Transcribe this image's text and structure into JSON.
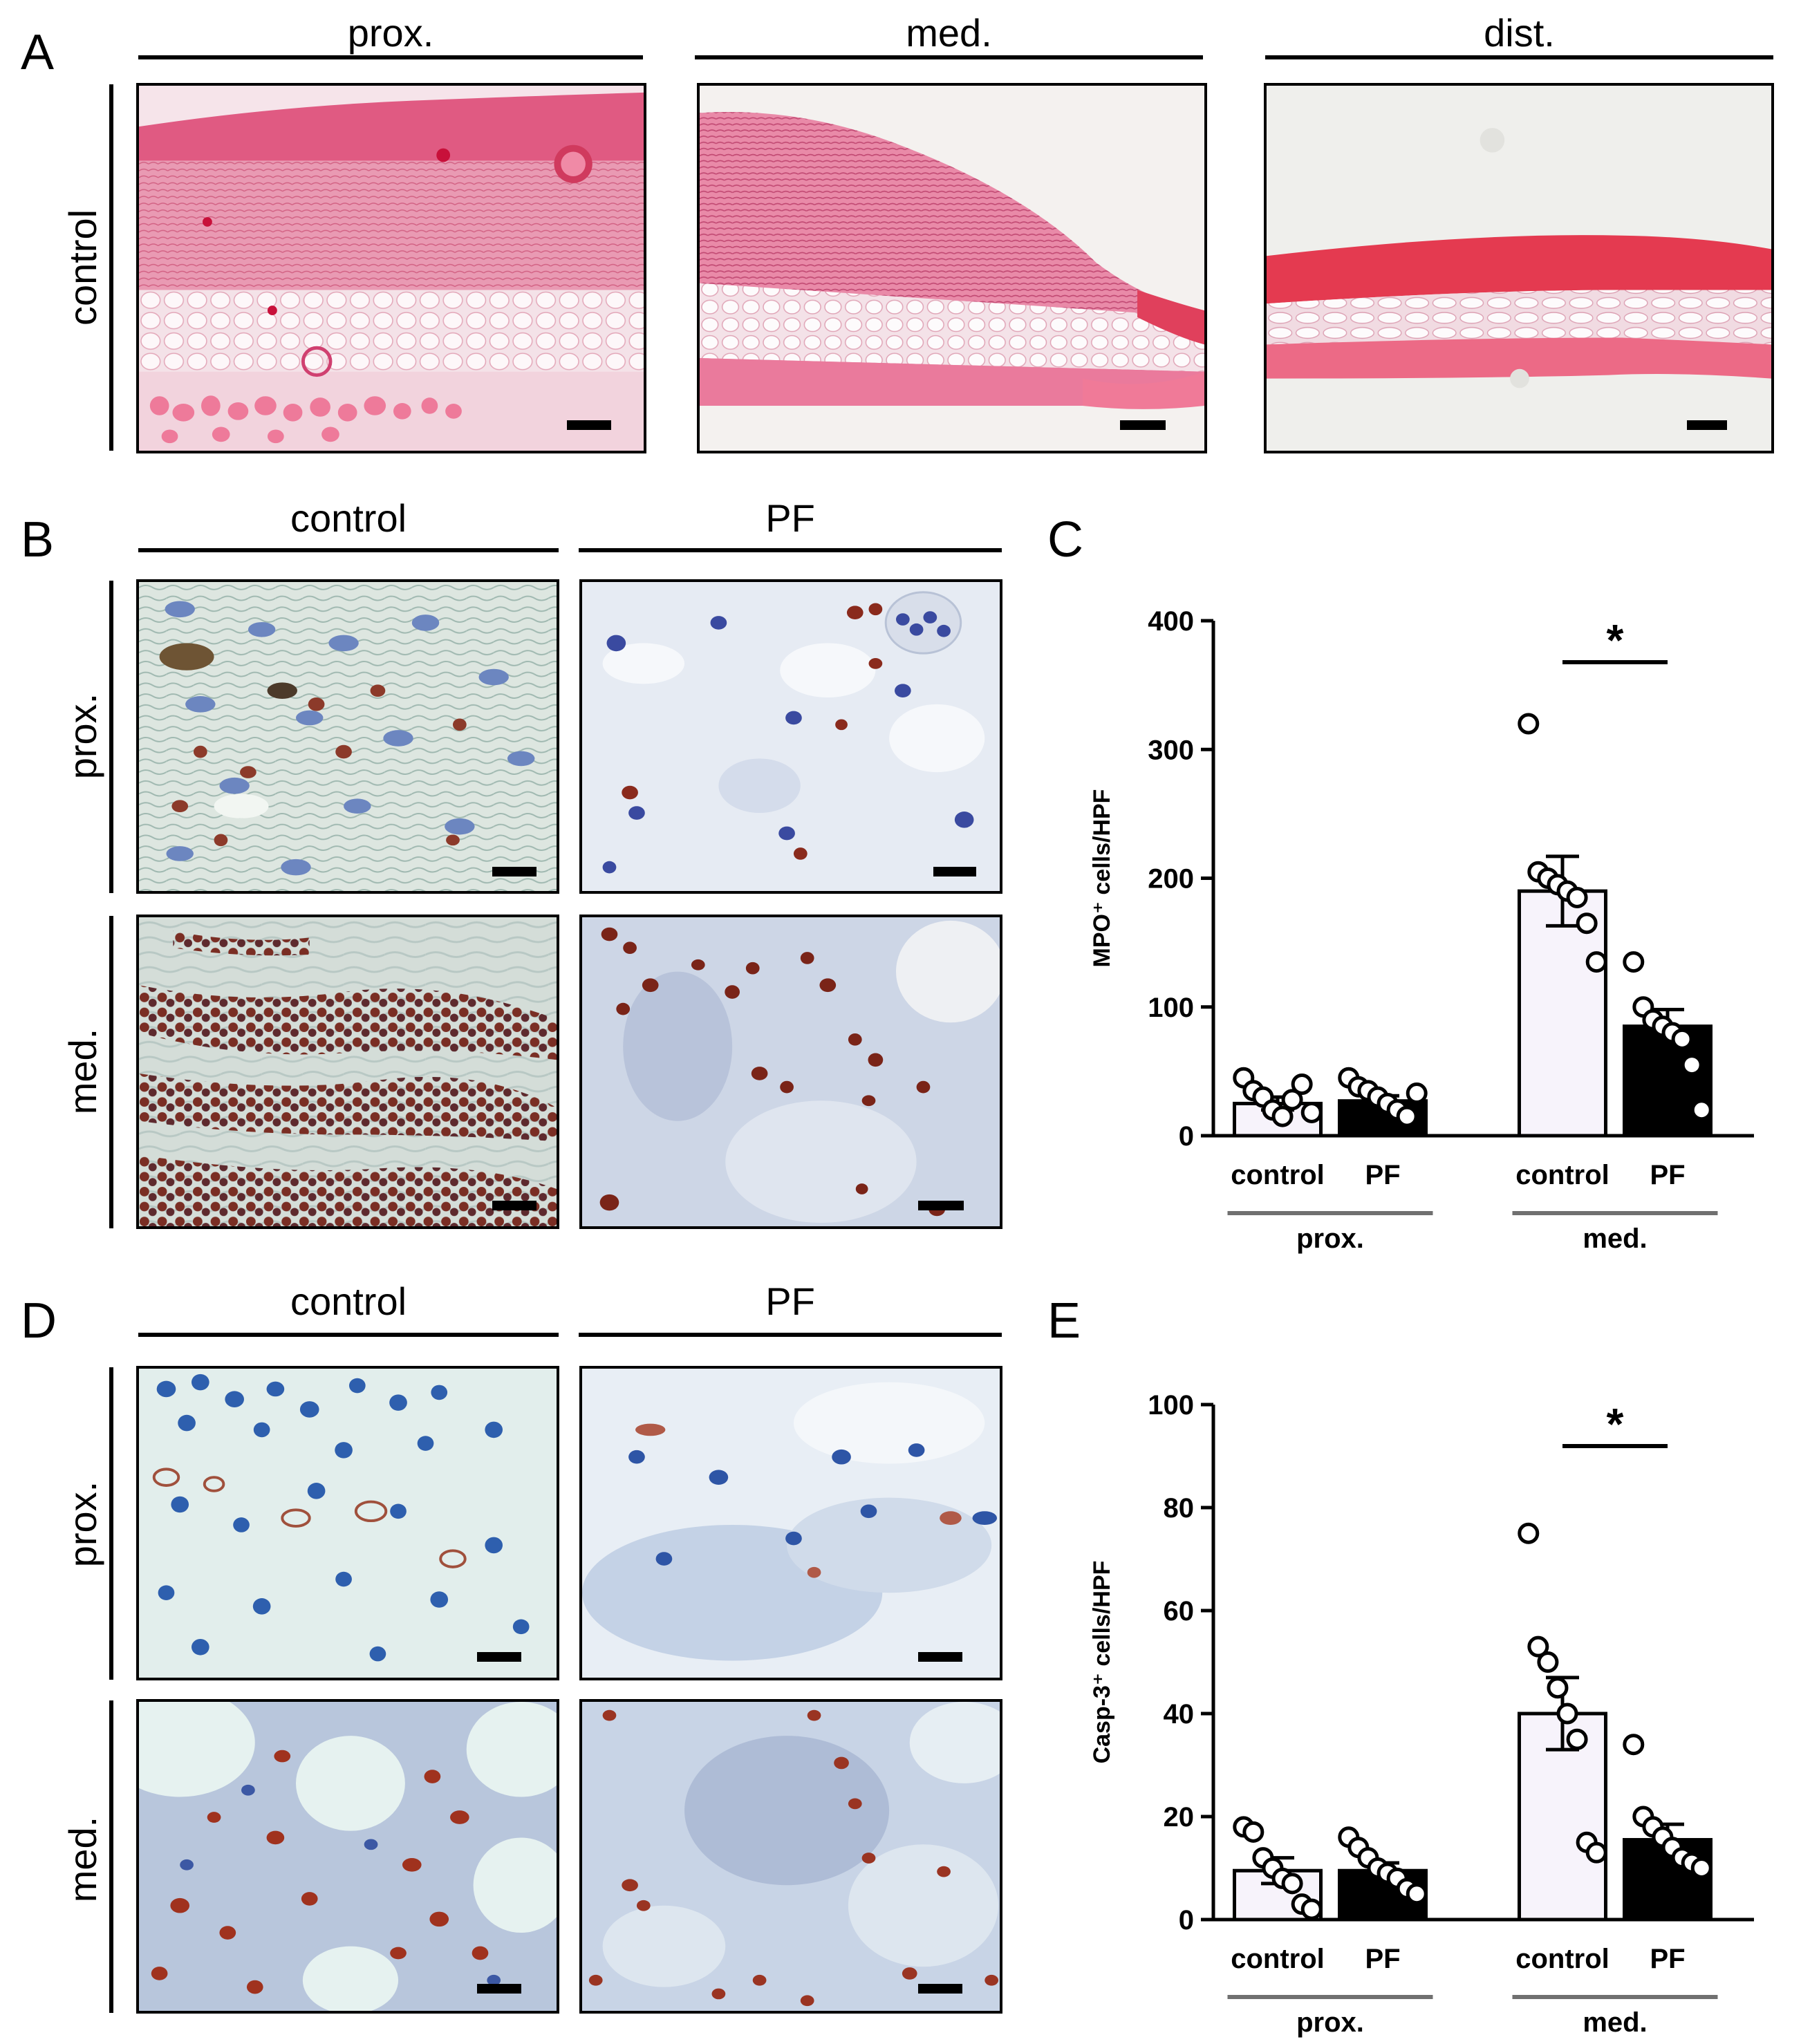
{
  "panel_A": {
    "letter": "A",
    "columns": [
      "prox.",
      "med.",
      "dist."
    ],
    "row_label": "control",
    "images": [
      {
        "name": "he-control-prox",
        "tissue": "he-skin-proximal"
      },
      {
        "name": "he-control-med",
        "tissue": "he-skin-medial"
      },
      {
        "name": "he-control-dist",
        "tissue": "he-skin-distal"
      }
    ]
  },
  "panel_B": {
    "letter": "B",
    "columns": [
      "control",
      "PF"
    ],
    "rows": [
      "prox.",
      "med."
    ],
    "stain": "MPO immunohistochemistry"
  },
  "panel_D": {
    "letter": "D",
    "columns": [
      "control",
      "PF"
    ],
    "rows": [
      "prox.",
      "med."
    ],
    "stain": "Casp-3 immunohistochemistry"
  },
  "chart_data": [
    {
      "panel": "C",
      "type": "bar",
      "ylabel": "MPO⁺ cells/HPF",
      "ylim": [
        0,
        400
      ],
      "yticks": [
        0,
        100,
        200,
        300,
        400
      ],
      "groups": [
        {
          "label": "prox.",
          "categories": [
            "control",
            "PF"
          ]
        },
        {
          "label": "med.",
          "categories": [
            "control",
            "PF"
          ]
        }
      ],
      "series": [
        {
          "name": "control",
          "color": "#f7f3fb",
          "values": [
            25,
            190
          ],
          "sem": [
            5,
            27
          ],
          "points": [
            [
              45,
              35,
              30,
              20,
              15,
              28,
              40,
              18
            ],
            [
              320,
              205,
              200,
              195,
              190,
              185,
              165,
              135
            ]
          ]
        },
        {
          "name": "PF",
          "color": "#000000",
          "values": [
            27,
            85
          ],
          "sem": [
            4,
            13
          ],
          "points": [
            [
              45,
              38,
              35,
              30,
              25,
              20,
              15,
              33
            ],
            [
              135,
              100,
              90,
              85,
              80,
              75,
              55,
              20
            ]
          ]
        }
      ],
      "significance": [
        {
          "group": "med.",
          "label": "*"
        }
      ]
    },
    {
      "panel": "E",
      "type": "bar",
      "ylabel": "Casp-3⁺ cells/HPF",
      "ylim": [
        0,
        100
      ],
      "yticks": [
        0,
        20,
        40,
        60,
        80,
        100
      ],
      "groups": [
        {
          "label": "prox.",
          "categories": [
            "control",
            "PF"
          ]
        },
        {
          "label": "med.",
          "categories": [
            "control",
            "PF"
          ]
        }
      ],
      "series": [
        {
          "name": "control",
          "color": "#f7f3fb",
          "values": [
            9.5,
            40
          ],
          "sem": [
            2.5,
            7
          ],
          "points": [
            [
              18,
              17,
              12,
              10,
              8,
              7,
              3,
              2
            ],
            [
              75,
              53,
              50,
              45,
              40,
              35,
              15,
              13
            ]
          ]
        },
        {
          "name": "PF",
          "color": "#000000",
          "values": [
            9.5,
            15.5
          ],
          "sem": [
            1.5,
            3
          ],
          "points": [
            [
              16,
              14,
              12,
              10,
              9,
              8,
              6,
              5
            ],
            [
              34,
              20,
              18,
              16,
              14,
              12,
              11,
              10
            ]
          ]
        }
      ],
      "significance": [
        {
          "group": "med.",
          "label": "*"
        }
      ]
    }
  ],
  "panel_C": {
    "letter": "C"
  },
  "panel_E": {
    "letter": "E"
  }
}
